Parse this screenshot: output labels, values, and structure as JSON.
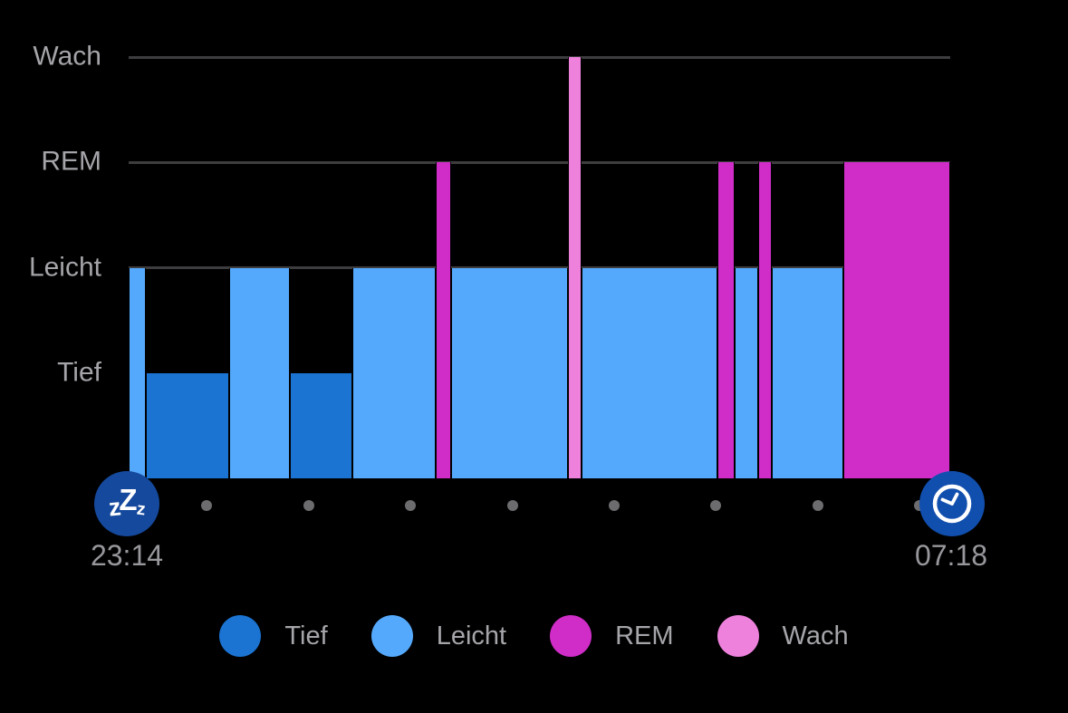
{
  "colors": {
    "background": "#000000",
    "tief": "#1b73d2",
    "leicht": "#55a9fc",
    "rem": "#d02dc8",
    "wach": "#ee81dc",
    "gridline": "#3d3d3f",
    "axis_label": "#a4a4a9",
    "time_label": "#97979c",
    "legend_label": "#a5a5aa",
    "hour_dot": "#6c6c6f",
    "sleep_icon_bg": "#15499d",
    "wake_icon_bg": "#114fae"
  },
  "timeline": {
    "start_time": "23:14",
    "end_time": "07:18",
    "sleep_icon": "zzz-icon",
    "wake_icon": "clock-icon",
    "zzz_glyphs": [
      "z",
      "Z",
      "z"
    ]
  },
  "legend": {
    "items": [
      {
        "label": "Tief",
        "color_key": "tief"
      },
      {
        "label": "Leicht",
        "color_key": "leicht"
      },
      {
        "label": "REM",
        "color_key": "rem"
      },
      {
        "label": "Wach",
        "color_key": "wach"
      }
    ]
  },
  "chart_data": {
    "type": "bar",
    "subtype": "sleep-stage-hypnogram",
    "x_start": "23:14",
    "x_end": "07:18",
    "duration_min": 484,
    "grid": "horizontal-only",
    "legend_position": "bottom",
    "y_levels": [
      {
        "label": "Wach",
        "pct_from_top": 0,
        "gridline": true
      },
      {
        "label": "REM",
        "pct_from_top": 25,
        "gridline": true
      },
      {
        "label": "Leicht",
        "pct_from_top": 50,
        "gridline": true
      },
      {
        "label": "Tief",
        "pct_from_top": 75,
        "gridline": false
      }
    ],
    "stage_height_pct": {
      "Tief": 25,
      "Leicht": 50,
      "REM": 75,
      "Wach": 100
    },
    "segments": [
      {
        "stage": "Leicht",
        "start_min": 0,
        "end_min": 10,
        "start_clock": "23:14",
        "end_clock": "23:24"
      },
      {
        "stage": "Tief",
        "start_min": 10,
        "end_min": 59,
        "start_clock": "23:24",
        "end_clock": "00:13"
      },
      {
        "stage": "Leicht",
        "start_min": 59,
        "end_min": 95,
        "start_clock": "00:13",
        "end_clock": "00:49"
      },
      {
        "stage": "Tief",
        "start_min": 95,
        "end_min": 132,
        "start_clock": "00:49",
        "end_clock": "01:26"
      },
      {
        "stage": "Leicht",
        "start_min": 132,
        "end_min": 181,
        "start_clock": "01:26",
        "end_clock": "02:15"
      },
      {
        "stage": "REM",
        "start_min": 181,
        "end_min": 190,
        "start_clock": "02:15",
        "end_clock": "02:24"
      },
      {
        "stage": "Leicht",
        "start_min": 190,
        "end_min": 259,
        "start_clock": "02:24",
        "end_clock": "03:33"
      },
      {
        "stage": "Wach",
        "start_min": 259,
        "end_min": 267,
        "start_clock": "03:33",
        "end_clock": "03:41"
      },
      {
        "stage": "Leicht",
        "start_min": 267,
        "end_min": 347,
        "start_clock": "03:41",
        "end_clock": "05:01"
      },
      {
        "stage": "REM",
        "start_min": 347,
        "end_min": 357,
        "start_clock": "05:01",
        "end_clock": "05:11"
      },
      {
        "stage": "Leicht",
        "start_min": 357,
        "end_min": 371,
        "start_clock": "05:11",
        "end_clock": "05:25"
      },
      {
        "stage": "REM",
        "start_min": 371,
        "end_min": 379,
        "start_clock": "05:25",
        "end_clock": "05:33"
      },
      {
        "stage": "Leicht",
        "start_min": 379,
        "end_min": 421,
        "start_clock": "05:33",
        "end_clock": "06:15"
      },
      {
        "stage": "REM",
        "start_min": 421,
        "end_min": 484,
        "start_clock": "06:15",
        "end_clock": "07:18"
      }
    ],
    "hour_tick_minutes": [
      46,
      106,
      166,
      226,
      286,
      346,
      406,
      466
    ]
  }
}
